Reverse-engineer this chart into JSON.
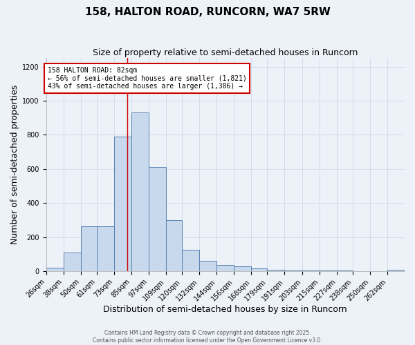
{
  "title_line1": "158, HALTON ROAD, RUNCORN, WA7 5RW",
  "title_line2": "Size of property relative to semi-detached houses in Runcorn",
  "xlabel": "Distribution of semi-detached houses by size in Runcorn",
  "ylabel": "Number of semi-detached properties",
  "bin_labels": [
    "26sqm",
    "38sqm",
    "50sqm",
    "61sqm",
    "73sqm",
    "85sqm",
    "97sqm",
    "109sqm",
    "120sqm",
    "132sqm",
    "144sqm",
    "156sqm",
    "168sqm",
    "179sqm",
    "191sqm",
    "203sqm",
    "215sqm",
    "227sqm",
    "238sqm",
    "250sqm",
    "262sqm"
  ],
  "bin_edges": [
    26,
    38,
    50,
    61,
    73,
    85,
    97,
    109,
    120,
    132,
    144,
    156,
    168,
    179,
    191,
    203,
    215,
    227,
    238,
    250,
    262,
    274
  ],
  "bar_heights": [
    20,
    110,
    265,
    265,
    790,
    930,
    610,
    300,
    125,
    60,
    38,
    30,
    15,
    8,
    5,
    4,
    4,
    3,
    2,
    2,
    8
  ],
  "bar_facecolor": "#c9d9ed",
  "bar_edgecolor": "#5580b0",
  "property_value": 82,
  "vline_color": "#cc0000",
  "annotation_text": "158 HALTON ROAD: 82sqm\n← 56% of semi-detached houses are smaller (1,821)\n43% of semi-detached houses are larger (1,386) →",
  "annotation_box_edgecolor": "#cc0000",
  "annotation_box_facecolor": "#ffffff",
  "ylim": [
    0,
    1250
  ],
  "yticks": [
    0,
    200,
    400,
    600,
    800,
    1000,
    1200
  ],
  "grid_color": "#d0d8e8",
  "background_color": "#edf1f8",
  "footer_text": "Contains HM Land Registry data © Crown copyright and database right 2025.\nContains public sector information licensed under the Open Government Licence v3.0.",
  "title_fontsize": 11,
  "subtitle_fontsize": 9,
  "tick_fontsize": 7,
  "axis_label_fontsize": 9
}
